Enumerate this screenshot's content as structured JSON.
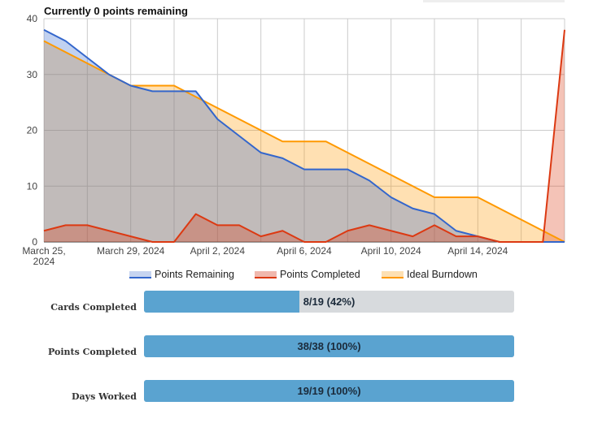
{
  "chart_data": {
    "type": "area",
    "title": "Currently 0 points remaining",
    "x_tick_labels": [
      "March 25,\n2024",
      "March 29, 2024",
      "April 2, 2024",
      "April 6, 2024",
      "April 10, 2024",
      "April 14, 2024"
    ],
    "ylim": [
      0,
      40
    ],
    "y_ticks": [
      0,
      10,
      20,
      30,
      40
    ],
    "grid": true,
    "legend_position": "bottom",
    "x": [
      "2024-03-25",
      "2024-03-26",
      "2024-03-27",
      "2024-03-28",
      "2024-03-29",
      "2024-03-30",
      "2024-03-31",
      "2024-04-01",
      "2024-04-02",
      "2024-04-03",
      "2024-04-04",
      "2024-04-05",
      "2024-04-06",
      "2024-04-07",
      "2024-04-08",
      "2024-04-09",
      "2024-04-10",
      "2024-04-11",
      "2024-04-12",
      "2024-04-13",
      "2024-04-14",
      "2024-04-15",
      "2024-04-16",
      "2024-04-17",
      "2024-04-18"
    ],
    "series": [
      {
        "name": "Points Remaining",
        "color": "#3366cc",
        "fill": "#c6d4f0",
        "values": [
          38,
          36,
          33,
          30,
          28,
          27,
          27,
          27,
          22,
          19,
          16,
          15,
          13,
          13,
          13,
          11,
          8,
          6,
          5,
          2,
          1,
          0,
          0,
          0,
          0
        ]
      },
      {
        "name": "Points Completed",
        "color": "#dc3912",
        "fill": "#f0b8ad",
        "values": [
          2,
          3,
          3,
          2,
          1,
          0,
          0,
          5,
          3,
          3,
          1,
          2,
          0,
          0,
          2,
          3,
          2,
          1,
          3,
          1,
          1,
          0,
          0,
          0,
          38
        ]
      },
      {
        "name": "Ideal Burndown",
        "color": "#ff9900",
        "fill": "#fde0b3",
        "values": [
          36,
          34,
          32,
          30,
          28,
          28,
          28,
          26,
          24,
          22,
          20,
          18,
          18,
          18,
          16,
          14,
          12,
          10,
          8,
          8,
          8,
          6,
          4,
          2,
          0
        ]
      }
    ]
  },
  "progress": [
    {
      "label": "Cards Completed",
      "text": "8/19 (42%)",
      "fraction": 0.42
    },
    {
      "label": "Points Completed",
      "text": "38/38 (100%)",
      "fraction": 1.0
    },
    {
      "label": "Days Worked",
      "text": "19/19 (100%)",
      "fraction": 1.0
    }
  ]
}
